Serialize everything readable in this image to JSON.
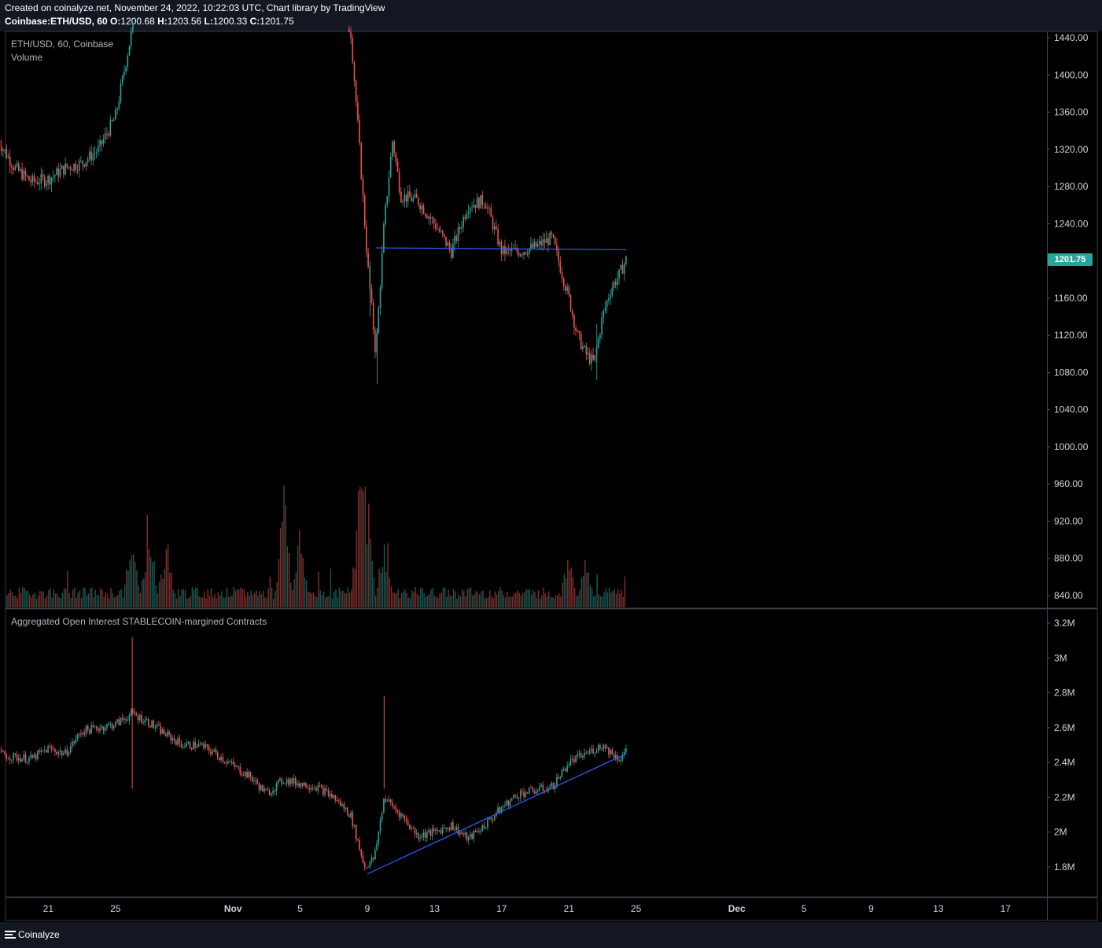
{
  "header": {
    "created_line": "Created on coinalyze.net, November 24, 2022, 10:22:03 UTC, Chart library by TradingView",
    "symbol": "Coinbase:ETH/USD, 60",
    "o_label": "O:",
    "o_value": "1200.68",
    "h_label": "H:",
    "h_value": "1203.56",
    "l_label": "L:",
    "l_value": "1200.33",
    "c_label": "C:",
    "c_value": "1201.75"
  },
  "main_pane": {
    "title": "ETH/USD, 60, Coinbase",
    "study": "Volume",
    "last_price": "1201.75"
  },
  "oi_pane": {
    "title": "Aggregated Open Interest STABLECOIN-margined Contracts"
  },
  "footer": {
    "brand": "Coinalyze"
  },
  "colors": {
    "up": "#26a69a",
    "down": "#ef5350",
    "trendline": "#2962ff",
    "background": "#000000",
    "axis_text": "#d1d4dc"
  },
  "chart_data": [
    {
      "type": "candlestick",
      "title": "ETH/USD, 60, Coinbase",
      "interval": "60",
      "ylim": [
        820,
        1450
      ],
      "y_ticks": [
        "1440.00",
        "1400.00",
        "1360.00",
        "1320.00",
        "1280.00",
        "1240.00",
        "1200.00",
        "1160.00",
        "1120.00",
        "1080.00",
        "1040.00",
        "1000.00",
        "960.00",
        "920.00",
        "880.00",
        "840.00"
      ],
      "y_tick_values": [
        1440,
        1400,
        1360,
        1320,
        1280,
        1240,
        1200,
        1160,
        1120,
        1080,
        1040,
        1000,
        960,
        920,
        880,
        840
      ],
      "last": {
        "open": 1200.68,
        "high": 1203.56,
        "low": 1200.33,
        "close": 1201.75
      },
      "price_path": [
        {
          "date": "2022-10-18",
          "price": 1330
        },
        {
          "date": "2022-10-19",
          "price": 1300
        },
        {
          "date": "2022-10-20",
          "price": 1285
        },
        {
          "date": "2022-10-21",
          "price": 1288
        },
        {
          "date": "2022-10-22",
          "price": 1300
        },
        {
          "date": "2022-10-23",
          "price": 1305
        },
        {
          "date": "2022-10-24",
          "price": 1320
        },
        {
          "date": "2022-10-25",
          "price": 1355
        },
        {
          "date": "2022-10-26",
          "price": 1450
        },
        {
          "date": "2022-11-08",
          "price": 1450
        },
        {
          "date": "2022-11-08T12:00",
          "price": 1330
        },
        {
          "date": "2022-11-09",
          "price": 1200
        },
        {
          "date": "2022-11-09T12:00",
          "price": 1100
        },
        {
          "date": "2022-11-10",
          "price": 1240
        },
        {
          "date": "2022-11-10T12:00",
          "price": 1330
        },
        {
          "date": "2022-11-11",
          "price": 1270
        },
        {
          "date": "2022-11-12",
          "price": 1265
        },
        {
          "date": "2022-11-13",
          "price": 1240
        },
        {
          "date": "2022-11-14",
          "price": 1210
        },
        {
          "date": "2022-11-15",
          "price": 1260
        },
        {
          "date": "2022-11-16",
          "price": 1265
        },
        {
          "date": "2022-11-17",
          "price": 1210
        },
        {
          "date": "2022-11-18",
          "price": 1210
        },
        {
          "date": "2022-11-19",
          "price": 1215
        },
        {
          "date": "2022-11-20",
          "price": 1225
        },
        {
          "date": "2022-11-21",
          "price": 1160
        },
        {
          "date": "2022-11-21T12:00",
          "price": 1120
        },
        {
          "date": "2022-11-22",
          "price": 1100
        },
        {
          "date": "2022-11-22T12:00",
          "price": 1090
        },
        {
          "date": "2022-11-23",
          "price": 1140
        },
        {
          "date": "2022-11-23T12:00",
          "price": 1170
        },
        {
          "date": "2022-11-24",
          "price": 1185
        },
        {
          "date": "2022-11-24T10:00",
          "price": 1201.75
        }
      ],
      "trendline": [
        {
          "date": "2022-11-09T12:00",
          "price": 1214
        },
        {
          "date": "2022-11-24T10:00",
          "price": 1212
        }
      ],
      "volume": {
        "bursts": [
          {
            "date": "2022-10-26",
            "level": 0.55
          },
          {
            "date": "2022-10-27",
            "level": 0.7
          },
          {
            "date": "2022-10-28",
            "level": 0.45
          },
          {
            "date": "2022-11-04",
            "level": 1.0
          },
          {
            "date": "2022-11-05",
            "level": 0.5
          },
          {
            "date": "2022-11-08T12:00",
            "level": 0.95
          },
          {
            "date": "2022-11-09",
            "level": 0.8
          },
          {
            "date": "2022-11-10",
            "level": 0.45
          },
          {
            "date": "2022-11-21",
            "level": 0.3
          },
          {
            "date": "2022-11-22",
            "level": 0.25
          }
        ]
      }
    },
    {
      "type": "line",
      "title": "Aggregated Open Interest STABLECOIN-margined Contracts",
      "ylim": [
        1.6,
        3.3
      ],
      "y_ticks": [
        "3.2M",
        "3M",
        "2.8M",
        "2.6M",
        "2.4M",
        "2.2M",
        "2M",
        "1.8M"
      ],
      "y_tick_values": [
        3.2,
        3.0,
        2.8,
        2.6,
        2.4,
        2.2,
        2.0,
        1.8
      ],
      "series": [
        {
          "points": [
            {
              "date": "2022-10-18",
              "value": 2.45
            },
            {
              "date": "2022-10-19",
              "value": 2.43
            },
            {
              "date": "2022-10-20",
              "value": 2.42
            },
            {
              "date": "2022-10-21",
              "value": 2.48
            },
            {
              "date": "2022-10-22",
              "value": 2.45
            },
            {
              "date": "2022-10-23",
              "value": 2.58
            },
            {
              "date": "2022-10-24",
              "value": 2.6
            },
            {
              "date": "2022-10-25",
              "value": 2.62
            },
            {
              "date": "2022-10-26",
              "value": 2.68
            },
            {
              "date": "2022-10-27",
              "value": 2.63
            },
            {
              "date": "2022-10-28",
              "value": 2.56
            },
            {
              "date": "2022-10-29",
              "value": 2.5
            },
            {
              "date": "2022-10-30",
              "value": 2.5
            },
            {
              "date": "2022-10-31",
              "value": 2.45
            },
            {
              "date": "2022-11-01",
              "value": 2.38
            },
            {
              "date": "2022-11-02",
              "value": 2.32
            },
            {
              "date": "2022-11-03",
              "value": 2.22
            },
            {
              "date": "2022-11-04",
              "value": 2.3
            },
            {
              "date": "2022-11-05",
              "value": 2.28
            },
            {
              "date": "2022-11-06",
              "value": 2.26
            },
            {
              "date": "2022-11-07",
              "value": 2.2
            },
            {
              "date": "2022-11-08",
              "value": 2.1
            },
            {
              "date": "2022-11-08T20:00",
              "value": 1.8
            },
            {
              "date": "2022-11-09T10:00",
              "value": 1.85
            },
            {
              "date": "2022-11-10",
              "value": 2.2
            },
            {
              "date": "2022-11-11",
              "value": 2.1
            },
            {
              "date": "2022-11-12",
              "value": 1.98
            },
            {
              "date": "2022-11-13",
              "value": 2.0
            },
            {
              "date": "2022-11-14",
              "value": 2.04
            },
            {
              "date": "2022-11-15",
              "value": 1.96
            },
            {
              "date": "2022-11-16",
              "value": 2.04
            },
            {
              "date": "2022-11-17",
              "value": 2.14
            },
            {
              "date": "2022-11-18",
              "value": 2.22
            },
            {
              "date": "2022-11-19",
              "value": 2.24
            },
            {
              "date": "2022-11-20",
              "value": 2.26
            },
            {
              "date": "2022-11-21",
              "value": 2.4
            },
            {
              "date": "2022-11-22",
              "value": 2.45
            },
            {
              "date": "2022-11-23",
              "value": 2.5
            },
            {
              "date": "2022-11-24",
              "value": 2.42
            },
            {
              "date": "2022-11-24T10:00",
              "value": 2.47
            }
          ]
        }
      ],
      "spikes": [
        {
          "date": "2022-10-26",
          "value": 3.12
        },
        {
          "date": "2022-11-10",
          "value": 2.78
        }
      ],
      "trendline": [
        {
          "date": "2022-11-09",
          "value": 1.76
        },
        {
          "date": "2022-11-24T10:00",
          "value": 2.45
        }
      ]
    }
  ],
  "x_axis": {
    "ticks": [
      {
        "label": "21",
        "date": "2022-10-21"
      },
      {
        "label": "25",
        "date": "2022-10-25"
      },
      {
        "label": "Nov",
        "date": "2022-11-01",
        "bold": true
      },
      {
        "label": "5",
        "date": "2022-11-05"
      },
      {
        "label": "9",
        "date": "2022-11-09"
      },
      {
        "label": "13",
        "date": "2022-11-13"
      },
      {
        "label": "17",
        "date": "2022-11-17"
      },
      {
        "label": "21",
        "date": "2022-11-21"
      },
      {
        "label": "25",
        "date": "2022-11-25"
      },
      {
        "label": "Dec",
        "date": "2022-12-01",
        "bold": true
      },
      {
        "label": "5",
        "date": "2022-12-05"
      },
      {
        "label": "9",
        "date": "2022-12-09"
      },
      {
        "label": "13",
        "date": "2022-12-13"
      },
      {
        "label": "17",
        "date": "2022-12-17"
      }
    ]
  }
}
